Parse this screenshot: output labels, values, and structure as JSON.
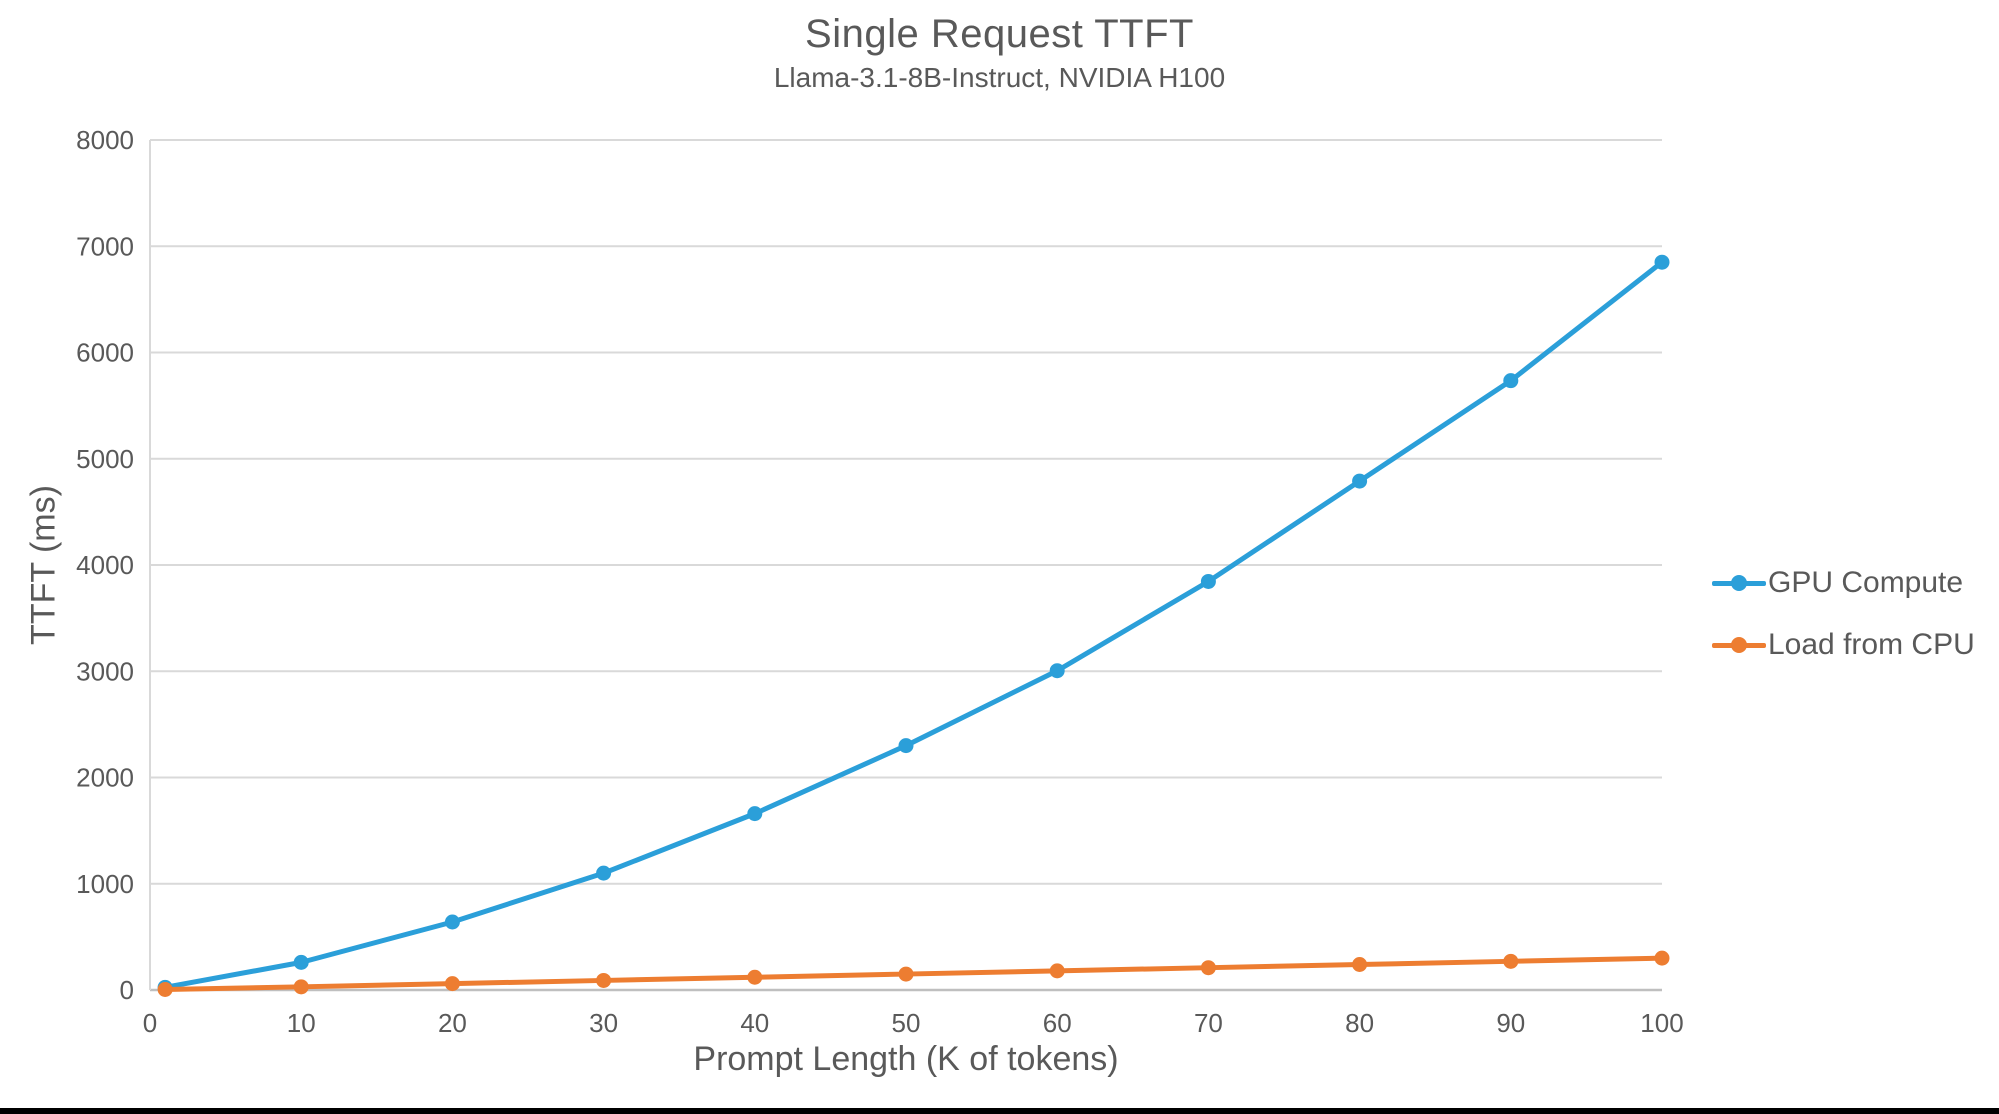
{
  "chart_data": {
    "type": "line",
    "title": "Single Request TTFT",
    "subtitle": "Llama-3.1-8B-Instruct, NVIDIA H100",
    "xlabel": "Prompt Length (K of tokens)",
    "ylabel": "TTFT (ms)",
    "x": [
      1,
      10,
      20,
      30,
      40,
      50,
      60,
      70,
      80,
      90,
      100
    ],
    "series": [
      {
        "name": "GPU Compute",
        "color": "#2B9FD9",
        "values": [
          25,
          260,
          640,
          1100,
          1660,
          2300,
          3005,
          3845,
          4790,
          5735,
          6850
        ]
      },
      {
        "name": "Load from CPU",
        "color": "#ED7D31",
        "values": [
          5,
          30,
          60,
          90,
          120,
          150,
          180,
          210,
          240,
          270,
          300
        ]
      }
    ],
    "xlim": [
      0,
      100
    ],
    "ylim": [
      0,
      8000
    ],
    "xticks": [
      0,
      10,
      20,
      30,
      40,
      50,
      60,
      70,
      80,
      90,
      100
    ],
    "yticks": [
      0,
      1000,
      2000,
      3000,
      4000,
      5000,
      6000,
      7000,
      8000
    ],
    "grid": "horizontal",
    "legend_position": "right",
    "gridline_color": "#D9D9D9",
    "axis_line_color": "#BFBFBF",
    "text_color": "#595959"
  }
}
